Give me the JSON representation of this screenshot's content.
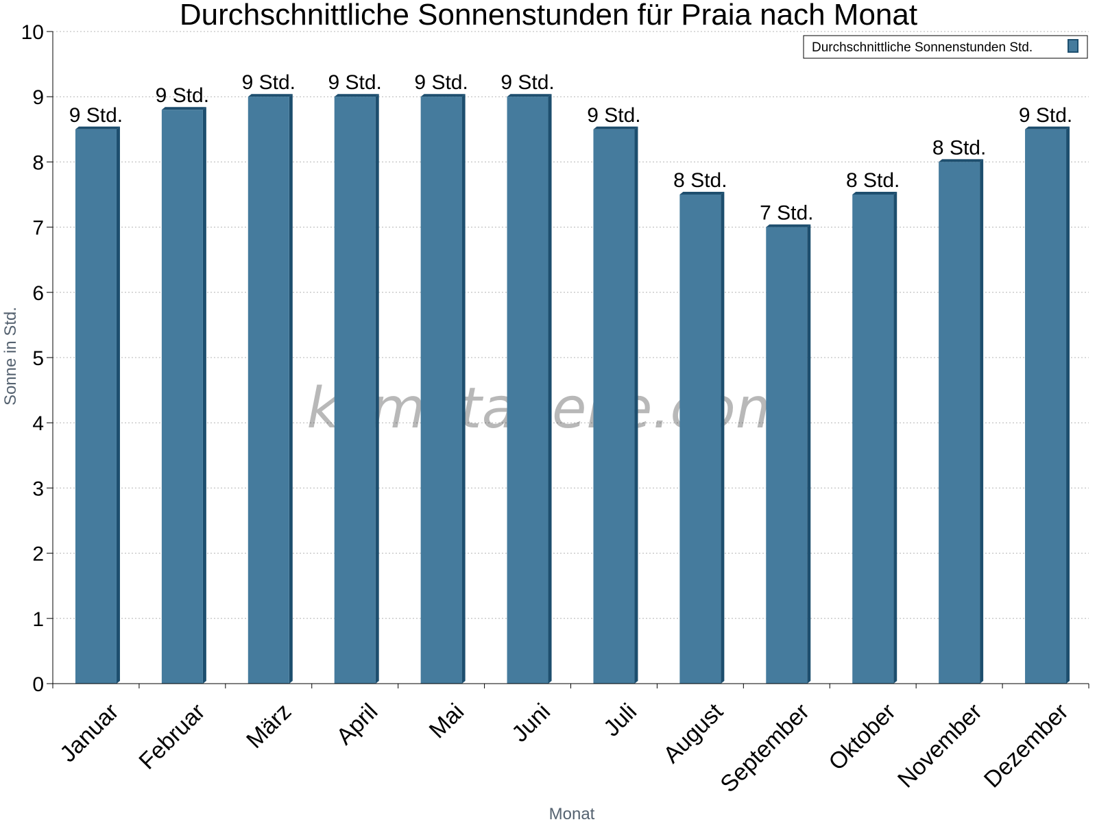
{
  "chart_data": {
    "type": "bar",
    "title": "Durchschnittliche Sonnenstunden für Praia nach Monat",
    "xlabel": "Monat",
    "ylabel": "Sonne in Std.",
    "ylim": [
      0,
      10
    ],
    "yticks": [
      0,
      1,
      2,
      3,
      4,
      5,
      6,
      7,
      8,
      9,
      10
    ],
    "grid": true,
    "legend_position": "top-right",
    "categories": [
      "Januar",
      "Februar",
      "März",
      "April",
      "Mai",
      "Juni",
      "Juli",
      "August",
      "September",
      "Oktober",
      "November",
      "Dezember"
    ],
    "series": [
      {
        "name": "Durchschnittliche Sonnenstunden Std.",
        "values": [
          8.5,
          8.8,
          9.0,
          9.0,
          9.0,
          9.0,
          8.5,
          7.5,
          7.0,
          7.5,
          8.0,
          8.5
        ],
        "data_labels": [
          "9 Std.",
          "9 Std.",
          "9 Std.",
          "9 Std.",
          "9 Std.",
          "9 Std.",
          "9 Std.",
          "8 Std.",
          "7 Std.",
          "8 Std.",
          "8 Std.",
          "9 Std."
        ],
        "color": "#457b9d",
        "side_color": "#1d4e6e"
      }
    ],
    "watermark": "klimatabelle.com"
  }
}
